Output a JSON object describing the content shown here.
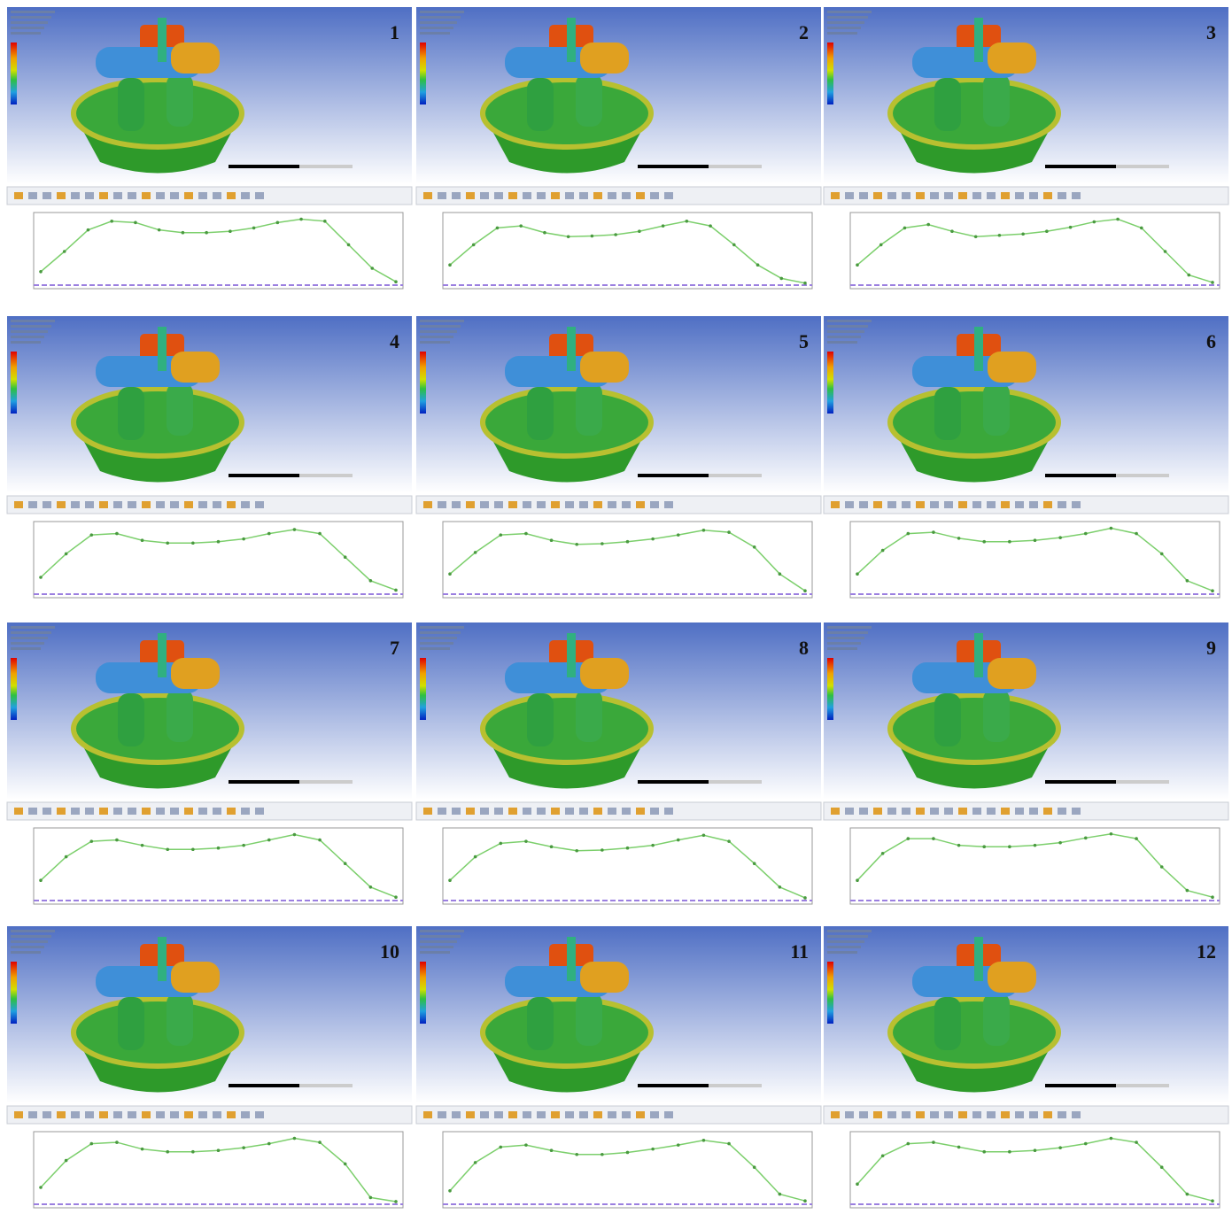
{
  "panels": [
    {
      "label": "1",
      "curve": [
        0.2,
        0.5,
        0.82,
        0.95,
        0.93,
        0.82,
        0.78,
        0.78,
        0.8,
        0.85,
        0.93,
        0.98,
        0.95,
        0.6,
        0.25,
        0.05
      ]
    },
    {
      "label": "2",
      "curve": [
        0.3,
        0.6,
        0.85,
        0.88,
        0.78,
        0.72,
        0.73,
        0.75,
        0.8,
        0.88,
        0.95,
        0.88,
        0.6,
        0.3,
        0.1,
        0.03
      ]
    },
    {
      "label": "3",
      "curve": [
        0.3,
        0.6,
        0.85,
        0.9,
        0.8,
        0.72,
        0.74,
        0.76,
        0.8,
        0.86,
        0.94,
        0.98,
        0.85,
        0.5,
        0.15,
        0.04
      ]
    },
    {
      "label": "4",
      "curve": [
        0.25,
        0.6,
        0.88,
        0.9,
        0.8,
        0.76,
        0.76,
        0.78,
        0.82,
        0.9,
        0.96,
        0.9,
        0.55,
        0.2,
        0.06
      ]
    },
    {
      "label": "5",
      "curve": [
        0.3,
        0.62,
        0.88,
        0.9,
        0.8,
        0.74,
        0.75,
        0.78,
        0.82,
        0.88,
        0.95,
        0.92,
        0.7,
        0.3,
        0.05
      ]
    },
    {
      "label": "6",
      "curve": [
        0.3,
        0.65,
        0.9,
        0.92,
        0.83,
        0.78,
        0.78,
        0.8,
        0.84,
        0.9,
        0.98,
        0.9,
        0.6,
        0.2,
        0.05
      ]
    },
    {
      "label": "7",
      "curve": [
        0.3,
        0.65,
        0.88,
        0.9,
        0.82,
        0.76,
        0.76,
        0.78,
        0.82,
        0.9,
        0.98,
        0.9,
        0.55,
        0.2,
        0.05
      ]
    },
    {
      "label": "8",
      "curve": [
        0.3,
        0.65,
        0.85,
        0.88,
        0.8,
        0.74,
        0.75,
        0.78,
        0.82,
        0.9,
        0.97,
        0.88,
        0.55,
        0.2,
        0.04
      ]
    },
    {
      "label": "9",
      "curve": [
        0.3,
        0.7,
        0.92,
        0.92,
        0.82,
        0.8,
        0.8,
        0.82,
        0.86,
        0.93,
        0.99,
        0.92,
        0.5,
        0.15,
        0.05
      ]
    },
    {
      "label": "10",
      "curve": [
        0.25,
        0.65,
        0.9,
        0.92,
        0.82,
        0.78,
        0.78,
        0.8,
        0.84,
        0.9,
        0.98,
        0.92,
        0.6,
        0.1,
        0.04
      ]
    },
    {
      "label": "11",
      "curve": [
        0.2,
        0.62,
        0.85,
        0.88,
        0.8,
        0.74,
        0.74,
        0.77,
        0.82,
        0.88,
        0.95,
        0.9,
        0.55,
        0.15,
        0.05
      ]
    },
    {
      "label": "12",
      "curve": [
        0.3,
        0.72,
        0.9,
        0.92,
        0.85,
        0.78,
        0.78,
        0.8,
        0.84,
        0.9,
        0.98,
        0.92,
        0.55,
        0.15,
        0.05
      ]
    }
  ]
}
